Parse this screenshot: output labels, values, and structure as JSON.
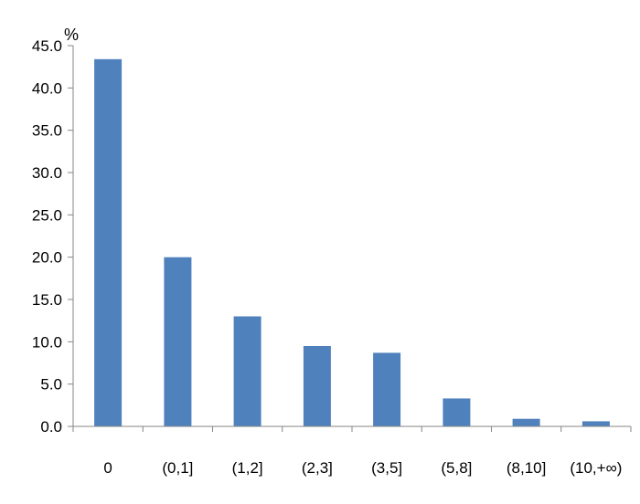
{
  "chart_data": {
    "type": "bar",
    "title": "",
    "xlabel": "",
    "ylabel": "%",
    "categories": [
      "0",
      "(0,1]",
      "(1,2]",
      "(2,3]",
      "(3,5]",
      "(5,8]",
      "(8,10]",
      "(10,+∞)"
    ],
    "values": [
      43.4,
      20.0,
      13.0,
      9.5,
      8.7,
      3.3,
      0.9,
      0.6
    ],
    "ylim": [
      0,
      45
    ],
    "yticks": [
      "0.0",
      "5.0",
      "10.0",
      "15.0",
      "20.0",
      "25.0",
      "30.0",
      "35.0",
      "40.0",
      "45.0"
    ],
    "grid": false,
    "legend": "none",
    "bar_color": "#4f81bd",
    "axis_color": "#868686"
  }
}
